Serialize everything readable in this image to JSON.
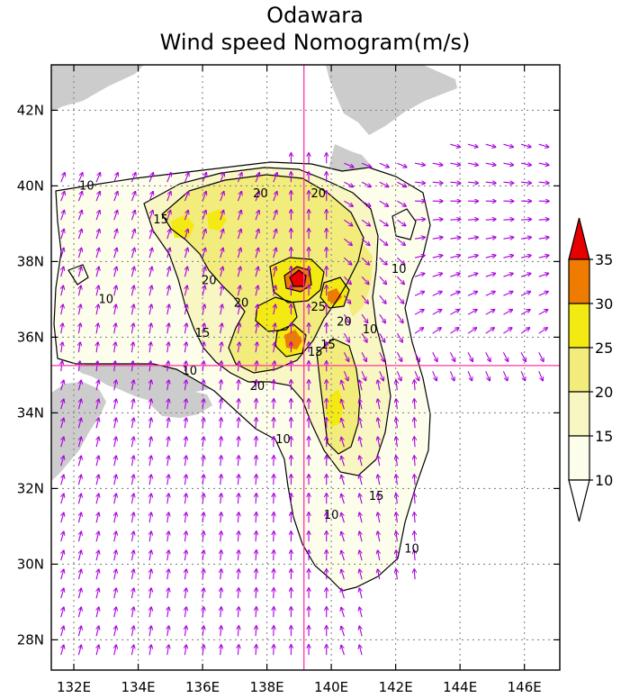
{
  "title": {
    "line1": "Odawara",
    "line2": "Wind speed Nomogram(m/s)"
  },
  "map": {
    "lon_range": [
      131.3,
      147.1
    ],
    "lat_range": [
      27.2,
      43.2
    ],
    "lon_ticks": [
      {
        "value": 132,
        "label": "132E"
      },
      {
        "value": 134,
        "label": "134E"
      },
      {
        "value": 136,
        "label": "136E"
      },
      {
        "value": 138,
        "label": "138E"
      },
      {
        "value": 140,
        "label": "140E"
      },
      {
        "value": 142,
        "label": "142E"
      },
      {
        "value": 144,
        "label": "144E"
      },
      {
        "value": 146,
        "label": "146E"
      }
    ],
    "lat_ticks": [
      {
        "value": 28,
        "label": "28N"
      },
      {
        "value": 30,
        "label": "30N"
      },
      {
        "value": 32,
        "label": "32N"
      },
      {
        "value": 34,
        "label": "34N"
      },
      {
        "value": 36,
        "label": "36N"
      },
      {
        "value": 38,
        "label": "38N"
      },
      {
        "value": 40,
        "label": "40N"
      },
      {
        "value": 42,
        "label": "42N"
      }
    ],
    "crosshair": {
      "lon": 139.15,
      "lat": 35.25
    },
    "grid": "dotted",
    "land_color": "#cccccc",
    "crosshair_color": "#ff33aa",
    "vector_color": "#aa00dd",
    "contour_labels": [
      {
        "lon": 132.4,
        "lat": 40.0,
        "text": "10"
      },
      {
        "lon": 134.7,
        "lat": 39.1,
        "text": "15"
      },
      {
        "lon": 137.8,
        "lat": 39.8,
        "text": "20"
      },
      {
        "lon": 139.6,
        "lat": 39.8,
        "text": "20"
      },
      {
        "lon": 136.2,
        "lat": 37.5,
        "text": "20"
      },
      {
        "lon": 142.1,
        "lat": 37.8,
        "text": "10"
      },
      {
        "lon": 133.0,
        "lat": 37.0,
        "text": "10"
      },
      {
        "lon": 137.2,
        "lat": 36.9,
        "text": "20"
      },
      {
        "lon": 139.6,
        "lat": 36.8,
        "text": "25"
      },
      {
        "lon": 140.4,
        "lat": 36.4,
        "text": "20"
      },
      {
        "lon": 141.2,
        "lat": 36.2,
        "text": "10"
      },
      {
        "lon": 136.0,
        "lat": 36.1,
        "text": "15"
      },
      {
        "lon": 139.9,
        "lat": 35.8,
        "text": "15"
      },
      {
        "lon": 135.6,
        "lat": 35.1,
        "text": "10"
      },
      {
        "lon": 139.5,
        "lat": 35.6,
        "text": "15"
      },
      {
        "lon": 137.7,
        "lat": 34.7,
        "text": "20"
      },
      {
        "lon": 138.5,
        "lat": 33.3,
        "text": "10"
      },
      {
        "lon": 141.4,
        "lat": 31.8,
        "text": "15"
      },
      {
        "lon": 140.0,
        "lat": 31.3,
        "text": "10"
      },
      {
        "lon": 142.5,
        "lat": 30.4,
        "text": "10"
      }
    ]
  },
  "colorbar": {
    "levels": [
      {
        "label": "10",
        "color": "#fdfdec"
      },
      {
        "label": "15",
        "color": "#f8f6c2"
      },
      {
        "label": "20",
        "color": "#f2ec7c"
      },
      {
        "label": "25",
        "color": "#f3ea14"
      },
      {
        "label": "30",
        "color": "#ef7c00"
      },
      {
        "label": "35",
        "color": "#e60000"
      }
    ],
    "under_color": "#ffffff"
  }
}
